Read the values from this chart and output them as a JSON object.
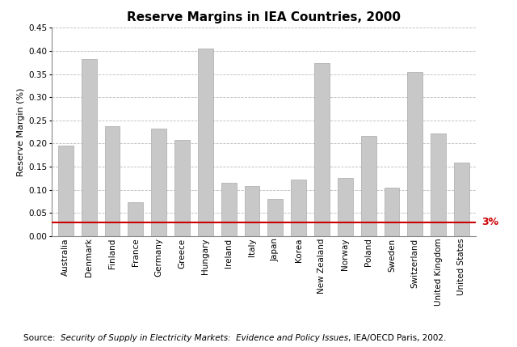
{
  "title": "Reserve Margins in IEA Countries, 2000",
  "xlabel": "",
  "ylabel": "Reserve Margin (%)",
  "categories": [
    "Australia",
    "Denmark",
    "Finland",
    "France",
    "Germany",
    "Greece",
    "Hungary",
    "Ireland",
    "Italy",
    "Japan",
    "Korea",
    "New Zealand",
    "Norway",
    "Poland",
    "Sweden",
    "Switzerland",
    "United Kingdom",
    "United States"
  ],
  "values": [
    0.195,
    0.383,
    0.237,
    0.073,
    0.232,
    0.208,
    0.405,
    0.115,
    0.108,
    0.08,
    0.122,
    0.373,
    0.126,
    0.217,
    0.105,
    0.355,
    0.221,
    0.158
  ],
  "bar_color": "#c8c8c8",
  "bar_edge_color": "#aaaaaa",
  "reference_line_y": 0.03,
  "reference_line_color": "#cc0000",
  "reference_line_label": "3%",
  "ylim": [
    0,
    0.45
  ],
  "yticks": [
    0.0,
    0.05,
    0.1,
    0.15,
    0.2,
    0.25,
    0.3,
    0.35,
    0.4,
    0.45
  ],
  "grid_color": "#bbbbbb",
  "background_color": "#ffffff",
  "title_fontsize": 11,
  "axis_label_fontsize": 8,
  "tick_fontsize": 7.5,
  "source_fontsize": 7.5
}
